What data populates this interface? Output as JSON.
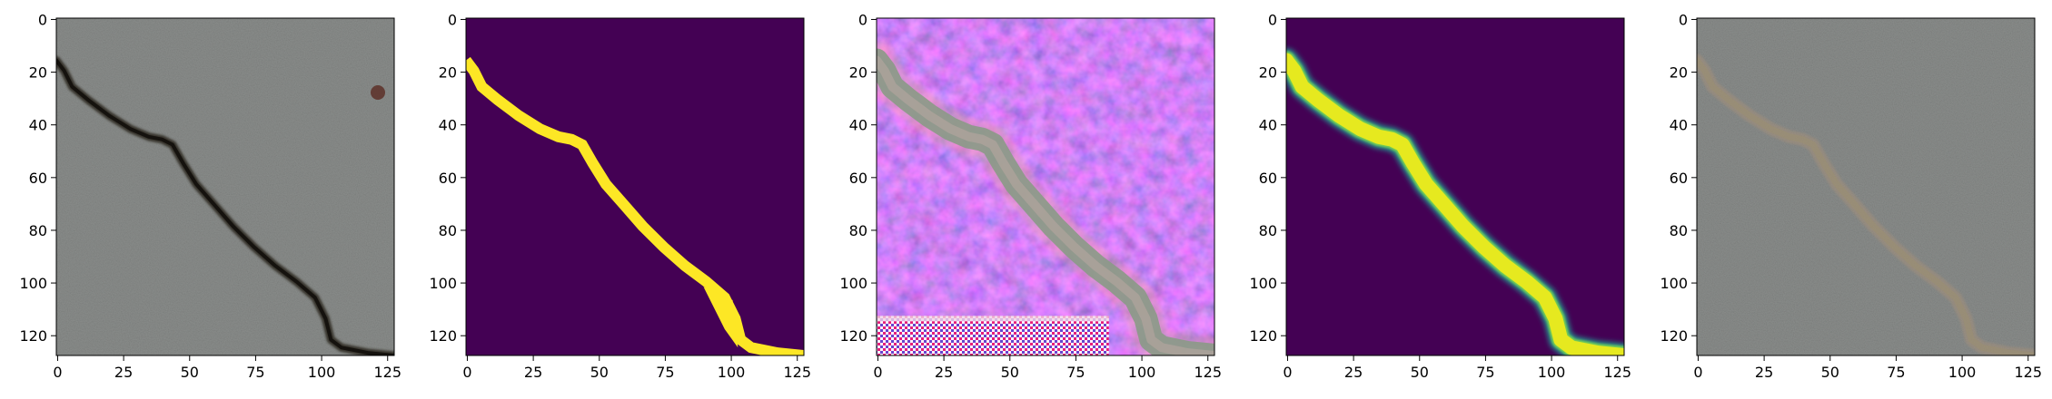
{
  "figure": {
    "panels": [
      {
        "index": 0,
        "kind": "rgb-photo",
        "description_key": "input-image"
      },
      {
        "index": 1,
        "kind": "binary-mask",
        "description_key": "ground-truth-mask"
      },
      {
        "index": 2,
        "kind": "feature-visualization",
        "description_key": "feature-map"
      },
      {
        "index": 3,
        "kind": "probability-map",
        "description_key": "prediction"
      },
      {
        "index": 4,
        "kind": "overlay",
        "description_key": "overlay"
      }
    ],
    "axes": {
      "x_ticks": [
        0,
        25,
        50,
        75,
        100,
        125
      ],
      "y_ticks": [
        0,
        20,
        40,
        60,
        80,
        100,
        120
      ],
      "x_range": [
        0,
        128
      ],
      "y_range": [
        0,
        128
      ]
    },
    "crack_path": [
      [
        0,
        16
      ],
      [
        3,
        20
      ],
      [
        6,
        26
      ],
      [
        12,
        31
      ],
      [
        20,
        37
      ],
      [
        28,
        42
      ],
      [
        35,
        45
      ],
      [
        40,
        46
      ],
      [
        44,
        48
      ],
      [
        48,
        55
      ],
      [
        53,
        63
      ],
      [
        60,
        71
      ],
      [
        67,
        79
      ],
      [
        75,
        87
      ],
      [
        83,
        94
      ],
      [
        91,
        100
      ],
      [
        98,
        106
      ],
      [
        102,
        114
      ],
      [
        104,
        122
      ],
      [
        108,
        125
      ],
      [
        118,
        127
      ],
      [
        128,
        128
      ]
    ],
    "colors": {
      "viridis_low": "#440154",
      "viridis_high": "#fde725",
      "viridis_mid": "#21918c",
      "concrete": "#8a8d8b",
      "crack_dark": "#2f2a22"
    }
  }
}
